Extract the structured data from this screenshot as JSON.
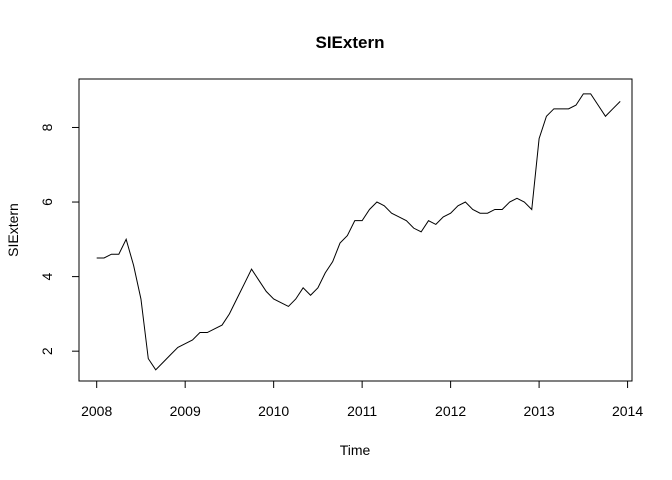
{
  "chart_data": {
    "type": "line",
    "title": "SIExtern",
    "xlabel": "Time",
    "ylabel": "SIExtern",
    "xlim": [
      2007.8,
      2014.05
    ],
    "ylim": [
      1.2,
      9.3
    ],
    "xticks": [
      2008,
      2009,
      2010,
      2011,
      2012,
      2013,
      2014
    ],
    "yticks": [
      2,
      4,
      6,
      8
    ],
    "grid": false,
    "series": [
      {
        "x": [
          2008.0,
          2008.083,
          2008.167,
          2008.25,
          2008.333,
          2008.417,
          2008.5,
          2008.583,
          2008.667,
          2008.75,
          2008.833,
          2008.917,
          2009.0,
          2009.083,
          2009.167,
          2009.25,
          2009.333,
          2009.417,
          2009.5,
          2009.583,
          2009.667,
          2009.75,
          2009.833,
          2009.917,
          2010.0,
          2010.083,
          2010.167,
          2010.25,
          2010.333,
          2010.417,
          2010.5,
          2010.583,
          2010.667,
          2010.75,
          2010.833,
          2010.917,
          2011.0,
          2011.083,
          2011.167,
          2011.25,
          2011.333,
          2011.417,
          2011.5,
          2011.583,
          2011.667,
          2011.75,
          2011.833,
          2011.917,
          2012.0,
          2012.083,
          2012.167,
          2012.25,
          2012.333,
          2012.417,
          2012.5,
          2012.583,
          2012.667,
          2012.75,
          2012.833,
          2012.917,
          2013.0,
          2013.083,
          2013.167,
          2013.25,
          2013.333,
          2013.417,
          2013.5,
          2013.583,
          2013.667,
          2013.75,
          2013.833,
          2013.917
        ],
        "values": [
          4.5,
          4.5,
          4.6,
          4.6,
          5.0,
          4.3,
          3.4,
          1.8,
          1.5,
          1.7,
          1.9,
          2.1,
          2.2,
          2.3,
          2.5,
          2.5,
          2.6,
          2.7,
          3.0,
          3.4,
          3.8,
          4.2,
          3.9,
          3.6,
          3.4,
          3.3,
          3.2,
          3.4,
          3.7,
          3.5,
          3.7,
          4.1,
          4.4,
          4.9,
          5.1,
          5.5,
          5.5,
          5.8,
          6.0,
          5.9,
          5.7,
          5.6,
          5.5,
          5.3,
          5.2,
          5.5,
          5.4,
          5.6,
          5.7,
          5.9,
          6.0,
          5.8,
          5.7,
          5.7,
          5.8,
          5.8,
          6.0,
          6.1,
          6.0,
          5.8,
          7.7,
          8.3,
          8.5,
          8.5,
          8.5,
          8.6,
          8.9,
          8.9,
          8.6,
          8.3,
          8.5,
          8.7
        ]
      }
    ]
  }
}
